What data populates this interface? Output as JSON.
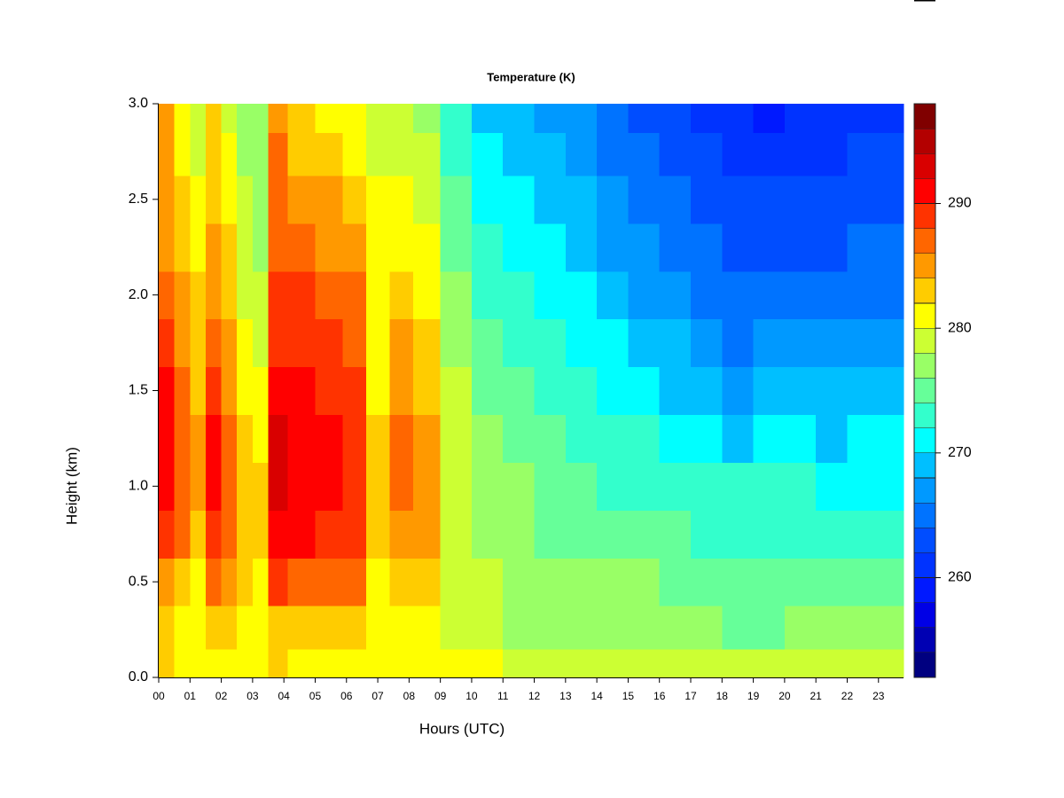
{
  "chart_data": {
    "type": "contour",
    "title": "Temperature (K)",
    "x_label": "Hours (UTC)",
    "y_label": "Height (km)",
    "xlim": [
      0,
      23.8
    ],
    "ylim": [
      0,
      3
    ],
    "xticks": [
      {
        "value": 0,
        "label": "00"
      },
      {
        "value": 1,
        "label": "01"
      },
      {
        "value": 2,
        "label": "02"
      },
      {
        "value": 3,
        "label": "03"
      },
      {
        "value": 4,
        "label": "04"
      },
      {
        "value": 5,
        "label": "05"
      },
      {
        "value": 6,
        "label": "06"
      },
      {
        "value": 7,
        "label": "07"
      },
      {
        "value": 8,
        "label": "08"
      },
      {
        "value": 9,
        "label": "09"
      },
      {
        "value": 10,
        "label": "10"
      },
      {
        "value": 11,
        "label": "11"
      },
      {
        "value": 12,
        "label": "12"
      },
      {
        "value": 13,
        "label": "13"
      },
      {
        "value": 14,
        "label": "14"
      },
      {
        "value": 15,
        "label": "15"
      },
      {
        "value": 16,
        "label": "16"
      },
      {
        "value": 17,
        "label": "17"
      },
      {
        "value": 18,
        "label": "18"
      },
      {
        "value": 19,
        "label": "19"
      },
      {
        "value": 20,
        "label": "20"
      },
      {
        "value": 21,
        "label": "21"
      },
      {
        "value": 22,
        "label": "22"
      },
      {
        "value": 23,
        "label": "23"
      }
    ],
    "yticks": [
      {
        "value": 0,
        "label": "0.0"
      },
      0.5,
      {
        "value": 1,
        "label": "1.0"
      },
      1.5,
      {
        "value": 2,
        "label": "2.0"
      },
      2.5,
      {
        "value": 3,
        "label": "3.0"
      }
    ],
    "x": [
      0.25,
      0.75,
      1.25,
      1.75,
      2.25,
      2.75,
      3.25,
      3.75,
      4.5,
      5.5,
      6.25,
      7,
      7.75,
      8.5,
      9.5,
      10.5,
      11.5,
      12.5,
      13.5,
      14.5,
      15.5,
      16.5,
      17.5,
      18.5,
      19.5,
      20.5,
      21.5,
      22.5,
      23.5
    ],
    "y": [
      0.05,
      0.25,
      0.5,
      0.75,
      1.0,
      1.25,
      1.5,
      1.75,
      2.0,
      2.25,
      2.5,
      2.75,
      2.95
    ],
    "z": [
      [
        282,
        282,
        285,
        289,
        291,
        291,
        290,
        289,
        287,
        285,
        285,
        284,
        284
      ],
      [
        281,
        281,
        283,
        286,
        287,
        287,
        286,
        285,
        284,
        283,
        282,
        281,
        281
      ],
      [
        281,
        281,
        281,
        283,
        284,
        284,
        283,
        282,
        282,
        281,
        280,
        279,
        279
      ],
      [
        281,
        282,
        286,
        289,
        290,
        290,
        289,
        287,
        285,
        284,
        283,
        282,
        282
      ],
      [
        281,
        282,
        284,
        287,
        287,
        286,
        285,
        284,
        283,
        282,
        281,
        280,
        279
      ],
      [
        281,
        281,
        282,
        283,
        283,
        282,
        281,
        280,
        279,
        278,
        278,
        277,
        277
      ],
      [
        281,
        281,
        281,
        282,
        282,
        281,
        280,
        279,
        278,
        277,
        277,
        276,
        276
      ],
      [
        282,
        283,
        288,
        291,
        292,
        292,
        291,
        289,
        288,
        287,
        287,
        286,
        285
      ],
      [
        281,
        282,
        287,
        290,
        291,
        291,
        290,
        289,
        288,
        286,
        285,
        283,
        282
      ],
      [
        281,
        282,
        287,
        289,
        290,
        290,
        289,
        288,
        287,
        285,
        284,
        282,
        281
      ],
      [
        281,
        282,
        286,
        288,
        289,
        289,
        288,
        287,
        286,
        284,
        283,
        281,
        280
      ],
      [
        281,
        281,
        281,
        282,
        282,
        282,
        281,
        281,
        280,
        280,
        280,
        279,
        279
      ],
      [
        281,
        281,
        283,
        285,
        286,
        286,
        285,
        284,
        283,
        281,
        280,
        279,
        278
      ],
      [
        281,
        281,
        282,
        284,
        285,
        284,
        283,
        282,
        281,
        280,
        279,
        278,
        277
      ],
      [
        280,
        279,
        279,
        279,
        279,
        279,
        278,
        277,
        276,
        275,
        274,
        273,
        272
      ],
      [
        280,
        278,
        278,
        277,
        277,
        276,
        275,
        274,
        273,
        272,
        271,
        270,
        269
      ],
      [
        279,
        277,
        277,
        276,
        276,
        275,
        274,
        273,
        272,
        271,
        270,
        269,
        268
      ],
      [
        279,
        277,
        276,
        275,
        275,
        274,
        273,
        272,
        271,
        270,
        269,
        268,
        267
      ],
      [
        279,
        277,
        276,
        275,
        274,
        273,
        272,
        271,
        270,
        269,
        268,
        267,
        266
      ],
      [
        279,
        277,
        276,
        274,
        273,
        272,
        271,
        270,
        268,
        267,
        266,
        265,
        264
      ],
      [
        279,
        277,
        276,
        274,
        273,
        272,
        270,
        269,
        267,
        266,
        265,
        264,
        263
      ],
      [
        279,
        277,
        275,
        274,
        273,
        271,
        269,
        268,
        266,
        265,
        264,
        263,
        262
      ],
      [
        279,
        276,
        275,
        273,
        272,
        270,
        268,
        266,
        265,
        264,
        263,
        262,
        261
      ],
      [
        279,
        275,
        274,
        273,
        272,
        269,
        267,
        265,
        264,
        263,
        262,
        261,
        260
      ],
      [
        278,
        274,
        274,
        273,
        272,
        270,
        268,
        266,
        264,
        263,
        262,
        261,
        259
      ],
      [
        278,
        276,
        275,
        273,
        272,
        270,
        268,
        266,
        264,
        263,
        262,
        261,
        260
      ],
      [
        278,
        276,
        275,
        273,
        271,
        269,
        268,
        266,
        265,
        263,
        262,
        261,
        260
      ],
      [
        278,
        276,
        274,
        273,
        271,
        270,
        268,
        266,
        265,
        264,
        263,
        262,
        261
      ],
      [
        278,
        276,
        274,
        272,
        271,
        270,
        268,
        267,
        265,
        264,
        263,
        262,
        261
      ]
    ],
    "zlim": [
      252,
      298
    ],
    "levels": [
      252,
      254,
      256,
      258,
      260,
      262,
      264,
      266,
      268,
      270,
      272,
      274,
      276,
      278,
      280,
      282,
      284,
      286,
      288,
      290,
      292,
      294,
      296,
      298
    ],
    "colors": [
      "#000080",
      "#0000B3",
      "#0000E6",
      "#0019FF",
      "#0033FF",
      "#004DFF",
      "#0073FF",
      "#0099FF",
      "#00BFFF",
      "#00FFFF",
      "#33FFCC",
      "#66FF99",
      "#99FF66",
      "#CCFF33",
      "#FFFF00",
      "#FFCC00",
      "#FF9900",
      "#FF6600",
      "#FF3300",
      "#FF0000",
      "#D90000",
      "#B30000",
      "#800000"
    ],
    "zticks": [
      260,
      270,
      280,
      290
    ]
  }
}
